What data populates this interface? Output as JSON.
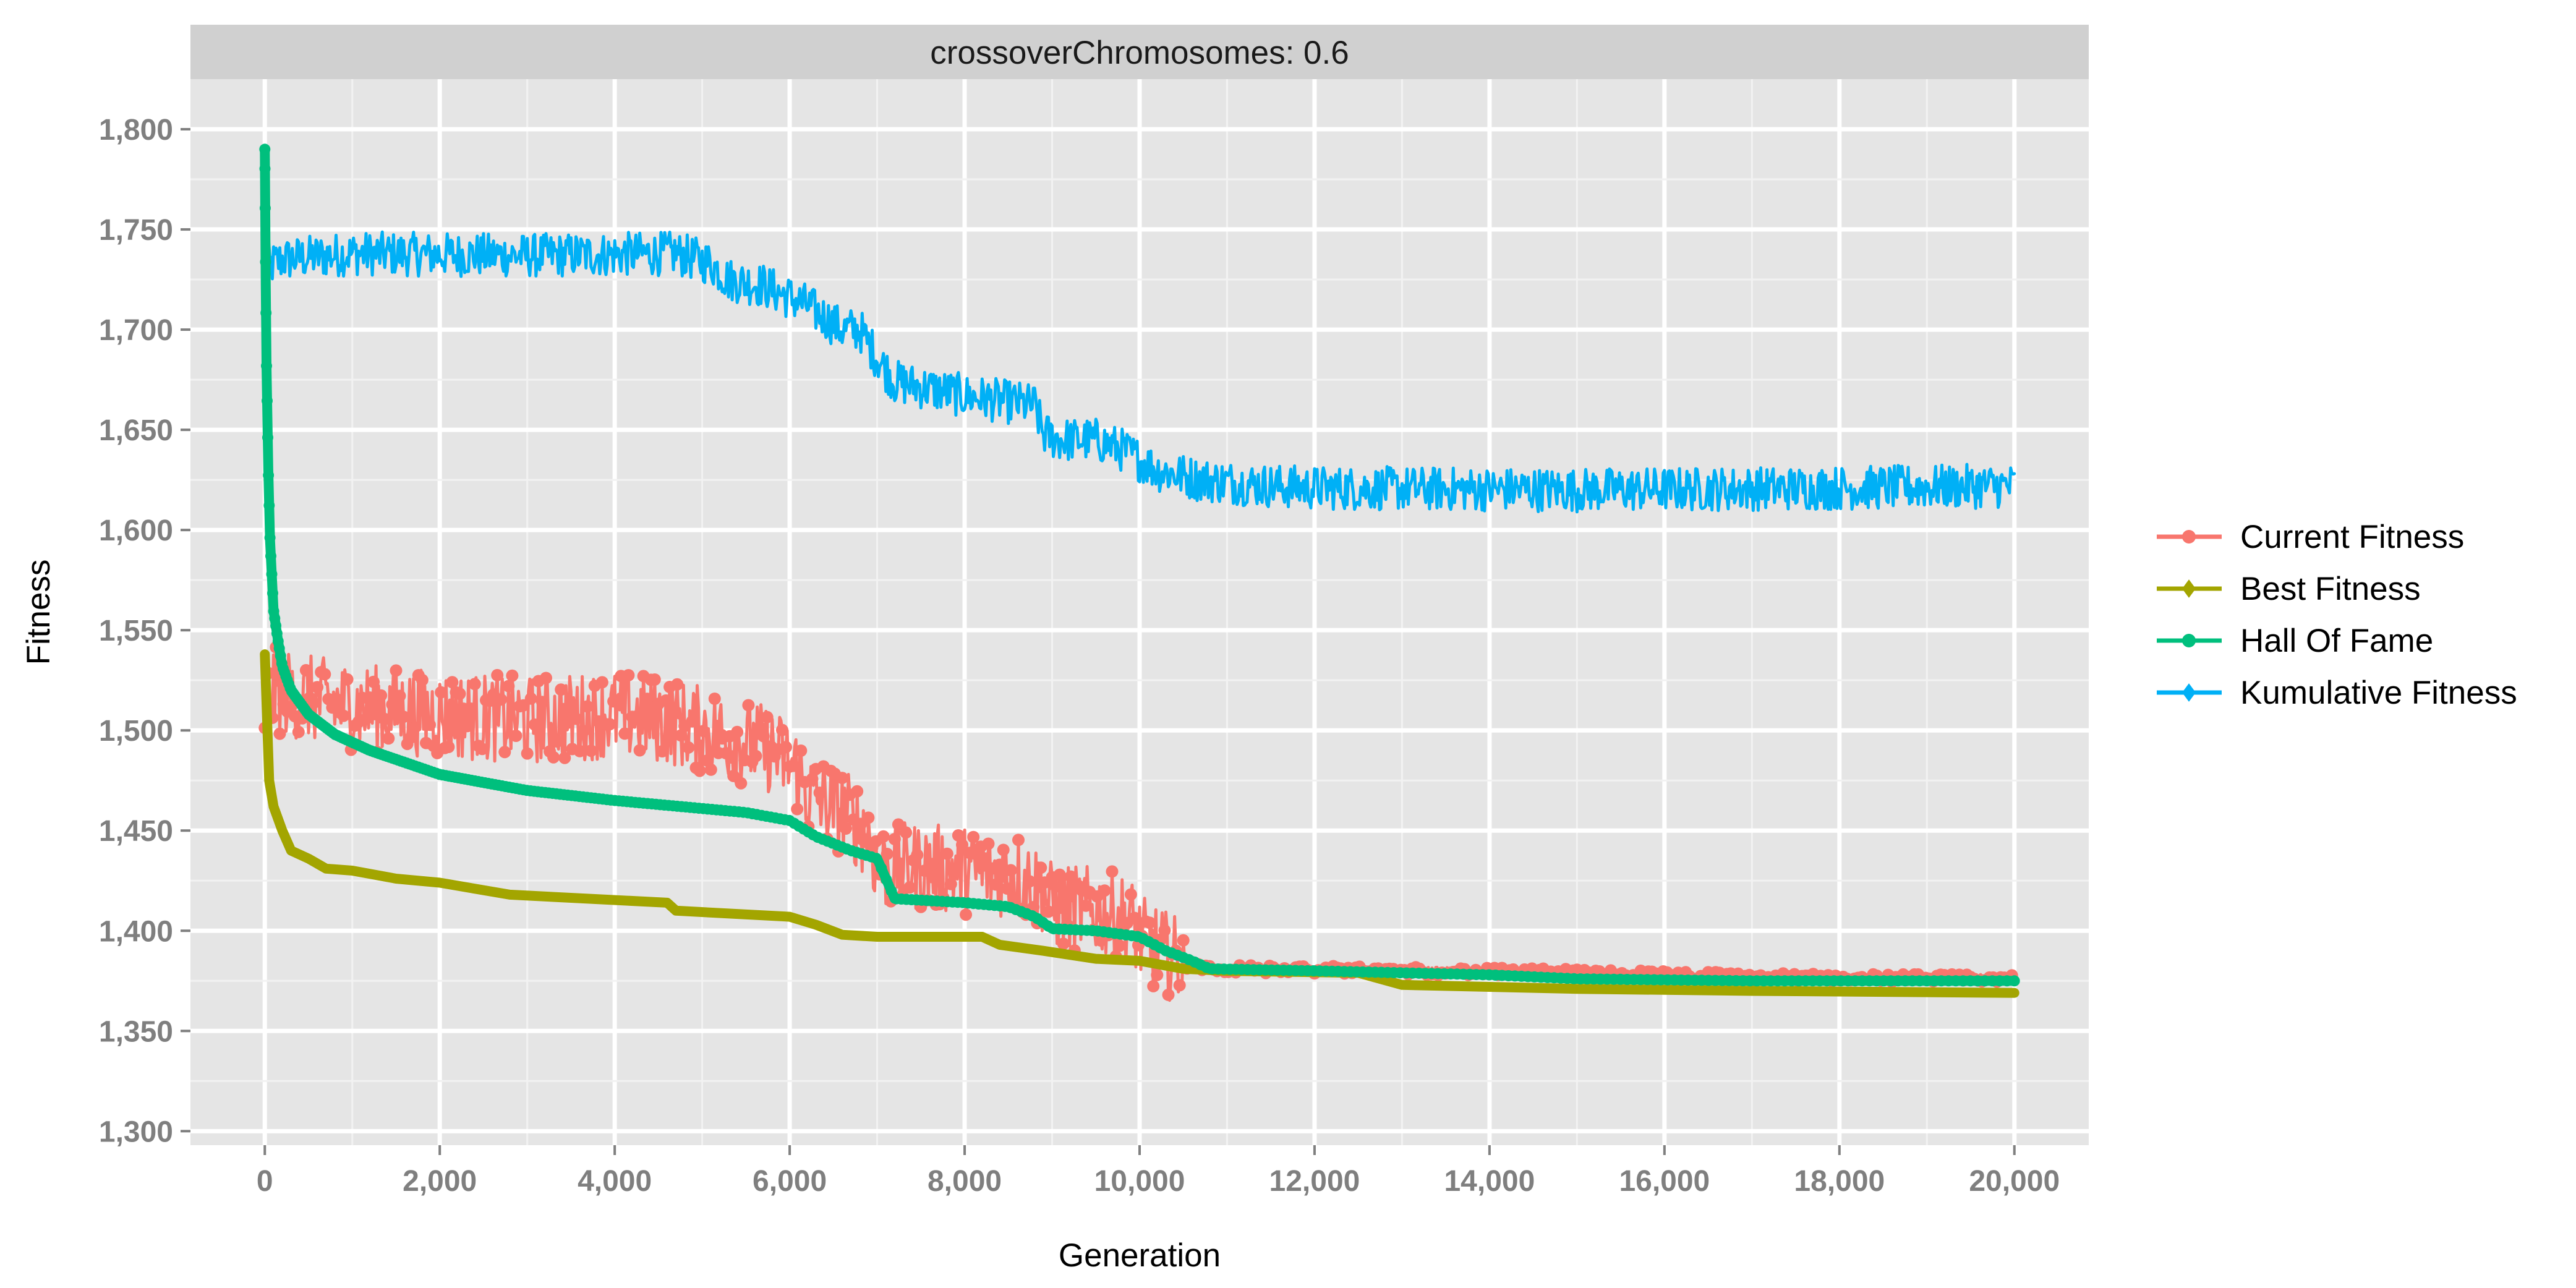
{
  "chart_data": {
    "type": "line",
    "facet_label": "crossoverChromosomes: 0.6",
    "title": "",
    "xlabel": "Generation",
    "ylabel": "Fitness",
    "xlim": [
      -850,
      20850
    ],
    "ylim": [
      1293,
      1825
    ],
    "x_ticks": [
      0,
      2000,
      4000,
      6000,
      8000,
      10000,
      12000,
      14000,
      16000,
      18000,
      20000
    ],
    "x_tick_labels": [
      "0",
      "2,000",
      "4,000",
      "6,000",
      "8,000",
      "10,000",
      "12,000",
      "14,000",
      "16,000",
      "18,000",
      "20,000"
    ],
    "y_ticks": [
      1300,
      1350,
      1400,
      1450,
      1500,
      1550,
      1600,
      1650,
      1700,
      1750,
      1800
    ],
    "y_tick_labels": [
      "1,300",
      "1,350",
      "1,400",
      "1,450",
      "1,500",
      "1,550",
      "1,600",
      "1,650",
      "1,700",
      "1,750",
      "1,800"
    ],
    "grid": true,
    "legend_position": "right",
    "series": [
      {
        "name": "Current Fitness",
        "color": "#F8766D",
        "marker": "circle",
        "noise": 22,
        "x": [
          0,
          100,
          300,
          600,
          1000,
          2000,
          3000,
          4000,
          4600,
          5200,
          5800,
          6100,
          6200,
          6600,
          6900,
          7000,
          7500,
          8000,
          8600,
          8900,
          9000,
          9500,
          9900,
          10000,
          10300,
          10600,
          11000,
          13000,
          15000,
          17000,
          20000
        ],
        "y": [
          1510,
          1520,
          1518,
          1515,
          1512,
          1508,
          1505,
          1508,
          1505,
          1498,
          1490,
          1480,
          1468,
          1460,
          1448,
          1432,
          1432,
          1430,
          1428,
          1420,
          1412,
          1410,
          1405,
          1396,
          1388,
          1382,
          1381,
          1380,
          1379,
          1377,
          1376
        ]
      },
      {
        "name": "Best Fitness",
        "color": "#A3A500",
        "marker": "diamond",
        "noise": 0,
        "x": [
          0,
          50,
          100,
          200,
          300,
          500,
          700,
          1000,
          1500,
          2000,
          2800,
          4600,
          4700,
          6000,
          6300,
          6600,
          7000,
          8200,
          8400,
          8900,
          9500,
          10000,
          10500,
          11000,
          12500,
          13000,
          15000,
          17000,
          20000
        ],
        "y": [
          1538,
          1475,
          1462,
          1450,
          1440,
          1436,
          1431,
          1430,
          1426,
          1424,
          1418,
          1414,
          1410,
          1407,
          1403,
          1398,
          1397,
          1397,
          1393,
          1390,
          1386,
          1385,
          1381,
          1380,
          1379,
          1373,
          1371,
          1370,
          1369
        ]
      },
      {
        "name": "Hall Of Fame",
        "color": "#00BF7D",
        "marker": "circle",
        "noise": 0,
        "x": [
          0,
          10,
          20,
          40,
          60,
          100,
          150,
          200,
          300,
          500,
          800,
          1200,
          2000,
          3000,
          4000,
          5000,
          5500,
          6000,
          6300,
          6700,
          7000,
          7200,
          8000,
          8500,
          8800,
          9000,
          9500,
          10000,
          10300,
          10600,
          10800,
          12000,
          14000,
          15000,
          17000,
          20000
        ],
        "y": [
          1790,
          1725,
          1680,
          1630,
          1595,
          1560,
          1545,
          1532,
          1520,
          1508,
          1498,
          1490,
          1478,
          1470,
          1465,
          1461,
          1459,
          1455,
          1447,
          1440,
          1436,
          1416,
          1414,
          1412,
          1407,
          1401,
          1400,
          1397,
          1390,
          1385,
          1381,
          1380,
          1378,
          1376,
          1375,
          1375
        ]
      },
      {
        "name": "Kumulative Fitness",
        "color": "#00B0F6",
        "marker": "diamond",
        "noise": 11,
        "x": [
          0,
          30,
          60,
          200,
          1000,
          3000,
          4700,
          5100,
          5300,
          5700,
          6200,
          6600,
          6800,
          7000,
          7200,
          8000,
          8800,
          8900,
          9100,
          9500,
          9800,
          10200,
          10700,
          11500,
          12000,
          15000,
          18000,
          20000
        ],
        "y": [
          1784,
          1735,
          1732,
          1735,
          1738,
          1737,
          1738,
          1733,
          1725,
          1722,
          1712,
          1700,
          1700,
          1686,
          1674,
          1667,
          1662,
          1648,
          1645,
          1645,
          1640,
          1630,
          1625,
          1622,
          1621,
          1620,
          1621,
          1622
        ]
      }
    ]
  }
}
